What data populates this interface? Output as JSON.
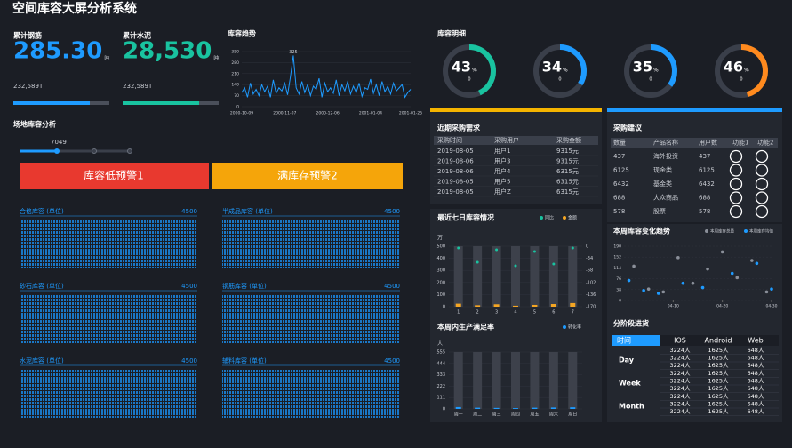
{
  "header": {
    "title": "空间库容大屏分析系统"
  },
  "stats": [
    {
      "label": "累计钢筋",
      "value": "285.30",
      "unit": "吨",
      "total": "232,589T",
      "color": "#1e9bff"
    },
    {
      "label": "累计水泥",
      "value": "28,530",
      "unit": "吨",
      "total": "232,589T",
      "color": "#19c3a0"
    }
  ],
  "site": {
    "title": "场地库容分析",
    "slider_label": "7049",
    "alerts": [
      "库容低预警1",
      "满库存预警2"
    ],
    "panels": [
      {
        "name": "合格库容 (单位)",
        "value": 4500
      },
      {
        "name": "半成品库容 (单位)",
        "value": 4500
      },
      {
        "name": "砂石库容 (单位)",
        "value": 4500
      },
      {
        "name": "钢筋库容 (单位)",
        "value": 4500
      },
      {
        "name": "水泥库容 (单位)",
        "value": 4500
      },
      {
        "name": "辅料库容 (单位)",
        "value": 4500
      }
    ]
  },
  "purchase": {
    "title": "近期采购需求",
    "columns": [
      "采购时间",
      "采购用户",
      "采购金额"
    ],
    "rows": [
      [
        "2019-08-05",
        "用户1",
        "9315元"
      ],
      [
        "2019-08-06",
        "用户3",
        "9315元"
      ],
      [
        "2019-08-06",
        "用户4",
        "6315元"
      ],
      [
        "2019-08-05",
        "用户5",
        "6315元"
      ],
      [
        "2019-08-05",
        "用户Z",
        "6315元"
      ]
    ]
  },
  "suggest": {
    "title": "采购建议",
    "columns": [
      "数量",
      "产品名称",
      "用户数",
      "功能1",
      "功能2"
    ],
    "rows": [
      [
        "437",
        "海外投资",
        "437"
      ],
      [
        "6125",
        "现金类",
        "6125"
      ],
      [
        "6432",
        "基金类",
        "6432"
      ],
      [
        "688",
        "大众商品",
        "688"
      ],
      [
        "578",
        "股票",
        "578"
      ]
    ]
  },
  "stage": {
    "title": "分阶段进货",
    "columns": [
      "时间",
      "IOS",
      "Android",
      "Web"
    ],
    "groups": [
      {
        "name": "Day",
        "rows": [
          [
            "3224人",
            "1625人",
            "648人"
          ],
          [
            "3224人",
            "1625人",
            "648人"
          ],
          [
            "3224人",
            "1625人",
            "648人"
          ]
        ]
      },
      {
        "name": "Week",
        "rows": [
          [
            "3224人",
            "1625人",
            "648人"
          ],
          [
            "3224人",
            "1625人",
            "648人"
          ],
          [
            "3224人",
            "1625人",
            "648人"
          ]
        ]
      },
      {
        "name": "Month",
        "rows": [
          [
            "3224人",
            "1625人",
            "648人"
          ],
          [
            "3224人",
            "1625人",
            "648人"
          ],
          [
            "3224人",
            "1625人",
            "648人"
          ]
        ]
      }
    ]
  },
  "chart_data": [
    {
      "type": "line",
      "title": "库容趋势",
      "color": "#1e9bff",
      "ylim": [
        0,
        350
      ],
      "yticks": [
        0,
        70,
        140,
        210,
        280,
        350
      ],
      "categories": [
        "2000-10-09",
        null,
        null,
        null,
        null,
        null,
        null,
        null,
        null,
        null,
        null,
        null,
        null,
        null,
        null,
        "2000-11-07",
        null,
        null,
        null,
        null,
        null,
        null,
        null,
        null,
        null,
        null,
        null,
        null,
        null,
        null,
        "2000-12-06",
        null,
        null,
        null,
        null,
        null,
        null,
        null,
        null,
        null,
        null,
        null,
        null,
        null,
        null,
        "2001-01-04",
        null,
        null,
        null,
        null,
        null,
        null,
        null,
        null,
        null,
        null,
        null,
        null,
        null,
        "2001-01-25"
      ],
      "values": [
        90,
        120,
        60,
        150,
        80,
        110,
        70,
        140,
        95,
        130,
        60,
        170,
        85,
        120,
        100,
        150,
        75,
        190,
        325,
        120,
        80,
        160,
        90,
        140,
        70,
        130,
        110,
        180,
        60,
        150,
        95,
        120,
        85,
        170,
        70,
        140,
        100,
        160,
        80,
        130,
        90,
        150,
        65,
        120,
        110,
        175,
        85,
        140,
        70,
        160,
        95,
        130,
        80,
        150,
        100,
        120,
        140,
        60,
        90,
        110
      ]
    },
    {
      "type": "gauge",
      "title": "库容明细",
      "ylim": [
        0,
        100
      ],
      "values": [
        43,
        34,
        35,
        46
      ],
      "unit": "%",
      "sublabels": [
        "0",
        "0",
        "0",
        "0"
      ],
      "colors": [
        "#19c3a0",
        "#1e9bff",
        "#1e9bff",
        "#ff8a1e"
      ]
    },
    {
      "type": "bar",
      "title": "最近七日库容情况",
      "y_unit": "万",
      "categories": [
        "1",
        "2",
        "3",
        "4",
        "5",
        "6",
        "7"
      ],
      "ylim": [
        0,
        500
      ],
      "yticks": [
        0,
        100,
        200,
        300,
        400,
        500
      ],
      "y2lim": [
        -170,
        0
      ],
      "y2ticks": [
        -170,
        -136,
        -102,
        -68,
        -34,
        0
      ],
      "series": [
        {
          "name": "同比",
          "color": "#19c3a0",
          "type": "scatter",
          "axis": "y2",
          "values": [
            -5,
            -45,
            -10,
            -55,
            -15,
            -50,
            -5
          ]
        },
        {
          "name": "金额",
          "color": "#f5a623",
          "values": [
            25,
            12,
            20,
            8,
            15,
            22,
            30
          ]
        }
      ]
    },
    {
      "type": "bar",
      "title": "本周内生产满足率",
      "y_unit": "人",
      "categories": [
        "周一",
        "周二",
        "周三",
        "周四",
        "周五",
        "周六",
        "周日"
      ],
      "ylim": [
        0,
        555
      ],
      "yticks": [
        0,
        111,
        222,
        333,
        444,
        555
      ],
      "series": [
        {
          "name": "转化率",
          "color": "#1e9bff",
          "values": [
            18,
            12,
            10,
            8,
            12,
            14,
            16
          ]
        }
      ]
    },
    {
      "type": "scatter",
      "title": "本周库容变化趋势",
      "xlim": [
        0,
        30
      ],
      "xticks": [
        {
          "value": 10,
          "label": "04-10"
        },
        {
          "value": 20,
          "label": "04-20"
        },
        {
          "value": 30,
          "label": "04-30"
        }
      ],
      "ylim": [
        0,
        190
      ],
      "yticks": [
        0,
        38,
        76,
        114,
        152,
        190
      ],
      "series": [
        {
          "name": "本周库存总量",
          "color": "#8a8f99",
          "x": [
            2,
            5,
            8,
            11,
            14,
            17,
            20,
            23,
            26,
            29
          ],
          "values": [
            120,
            40,
            30,
            150,
            60,
            110,
            170,
            80,
            140,
            30
          ]
        },
        {
          "name": "本周库存均值",
          "color": "#1e9bff",
          "x": [
            1,
            4,
            7,
            12,
            16,
            22,
            27,
            30
          ],
          "values": [
            70,
            35,
            25,
            60,
            45,
            95,
            130,
            40
          ]
        }
      ]
    }
  ]
}
